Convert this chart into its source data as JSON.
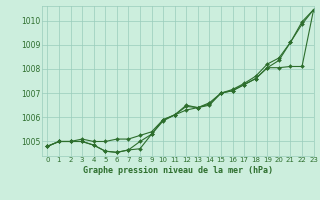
{
  "title": "Graphe pression niveau de la mer (hPa)",
  "background_color": "#cceedd",
  "grid_color": "#99ccbb",
  "line_color": "#2d6e2d",
  "xlim": [
    -0.5,
    23
  ],
  "ylim": [
    1004.4,
    1010.6
  ],
  "yticks": [
    1005,
    1006,
    1007,
    1008,
    1009,
    1010
  ],
  "xticks": [
    0,
    1,
    2,
    3,
    4,
    5,
    6,
    7,
    8,
    9,
    10,
    11,
    12,
    13,
    14,
    15,
    16,
    17,
    18,
    19,
    20,
    21,
    22,
    23
  ],
  "series1": [
    1004.8,
    1005.0,
    1005.0,
    1005.0,
    1004.85,
    1004.6,
    1004.55,
    1004.65,
    1004.7,
    1005.3,
    1005.85,
    1006.1,
    1006.45,
    1006.4,
    1006.5,
    1007.0,
    1007.1,
    1007.35,
    1007.6,
    1008.05,
    1008.35,
    1009.1,
    1009.85,
    1010.45
  ],
  "series2": [
    1004.8,
    1005.0,
    1005.0,
    1005.0,
    1004.85,
    1004.6,
    1004.55,
    1004.65,
    1005.0,
    1005.3,
    1005.9,
    1006.1,
    1006.5,
    1006.4,
    1006.55,
    1007.0,
    1007.1,
    1007.35,
    1007.6,
    1008.05,
    1008.05,
    1008.1,
    1008.1,
    1010.45
  ],
  "series3": [
    1004.8,
    1005.0,
    1005.0,
    1005.1,
    1005.0,
    1005.0,
    1005.1,
    1005.1,
    1005.25,
    1005.4,
    1005.9,
    1006.1,
    1006.3,
    1006.4,
    1006.6,
    1007.0,
    1007.15,
    1007.4,
    1007.7,
    1008.2,
    1008.45,
    1009.1,
    1009.95,
    1010.45
  ],
  "tick_fontsize": 5.5,
  "label_fontsize": 6.0,
  "marker_size": 2.0,
  "line_width": 0.8
}
